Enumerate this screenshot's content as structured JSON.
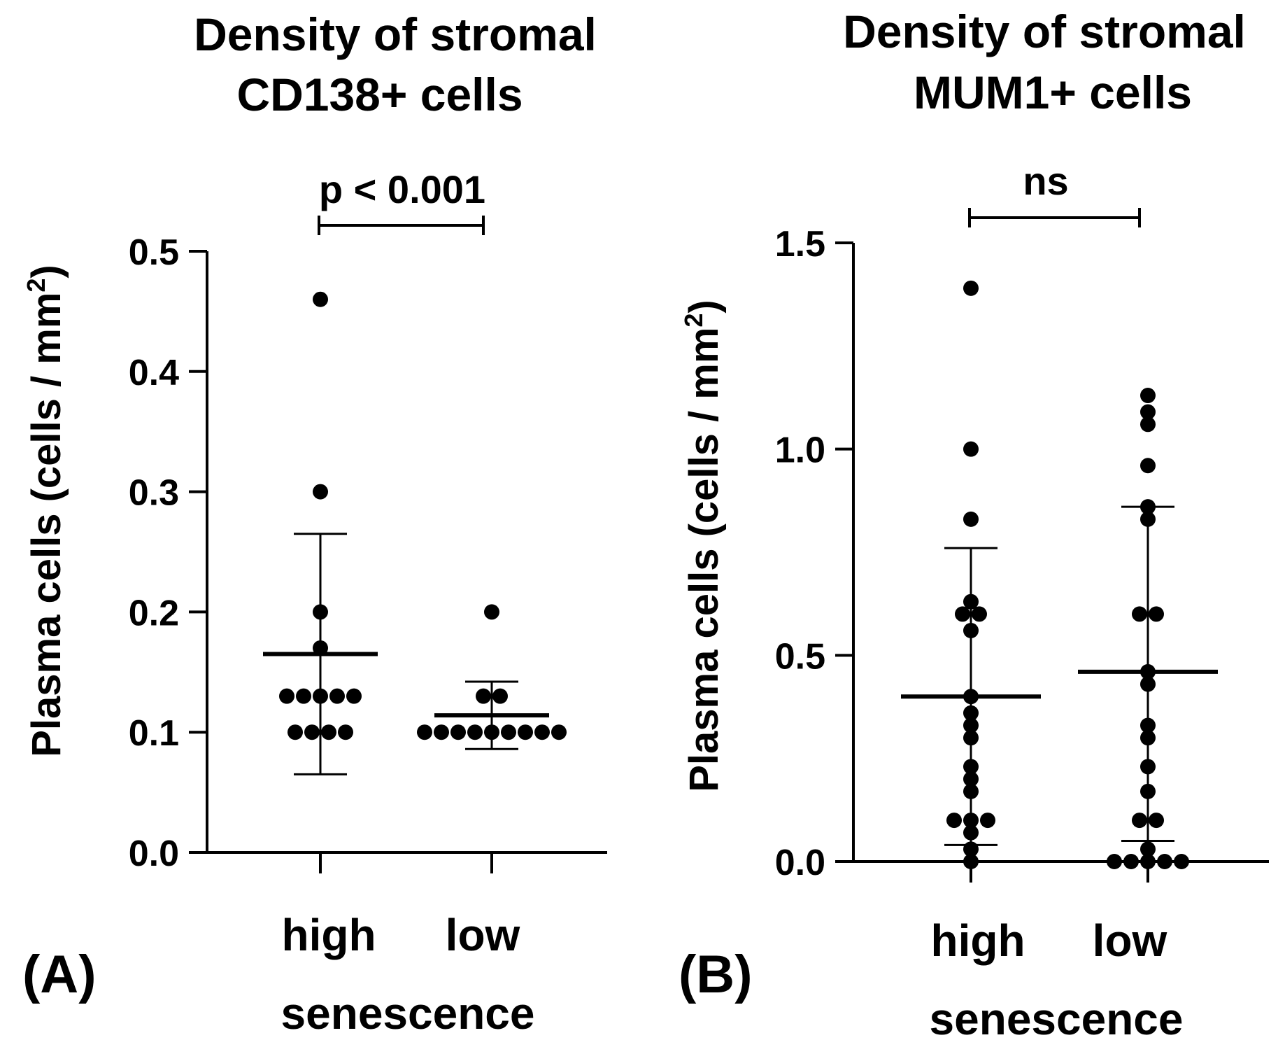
{
  "chart_data": [
    {
      "type": "scatter",
      "panel_label": "(A)",
      "title": [
        "Density of stromal",
        "CD138+ cells"
      ],
      "ylabel": "Plasma cells (cells / mm",
      "ylabel_sup": "2",
      "ylabel_close": ")",
      "xlabel": "senescence",
      "categories": [
        "high",
        "low"
      ],
      "ylim": [
        0,
        0.5
      ],
      "yticks": [
        0.0,
        0.1,
        0.2,
        0.3,
        0.4,
        0.5
      ],
      "ytick_labels": [
        "0.0",
        "0.1",
        "0.2",
        "0.3",
        "0.4",
        "0.5"
      ],
      "significance": "p < 0.001",
      "series": [
        {
          "name": "high",
          "points": [
            0.46,
            0.3,
            0.2,
            0.17,
            0.13,
            0.13,
            0.13,
            0.13,
            0.13,
            0.1,
            0.1,
            0.1,
            0.1
          ],
          "mean": 0.165,
          "sd_low": 0.065,
          "sd_high": 0.265
        },
        {
          "name": "low",
          "points": [
            0.2,
            0.13,
            0.13,
            0.1,
            0.1,
            0.1,
            0.1,
            0.1,
            0.1,
            0.1,
            0.1,
            0.1
          ],
          "mean": 0.114,
          "sd_low": 0.086,
          "sd_high": 0.142
        }
      ]
    },
    {
      "type": "scatter",
      "panel_label": "(B)",
      "title": [
        "Density of stromal",
        "MUM1+ cells"
      ],
      "ylabel": "Plasma cells (cells / mm",
      "ylabel_sup": "2",
      "ylabel_close": ")",
      "xlabel": "senescence",
      "categories": [
        "high",
        "low"
      ],
      "ylim": [
        0,
        1.5
      ],
      "yticks": [
        0.0,
        0.5,
        1.0,
        1.5
      ],
      "ytick_labels": [
        "0.0",
        "0.5",
        "1.0",
        "1.5"
      ],
      "significance": "ns",
      "series": [
        {
          "name": "high",
          "points": [
            1.39,
            1.0,
            0.83,
            0.63,
            0.6,
            0.6,
            0.56,
            0.4,
            0.36,
            0.33,
            0.3,
            0.23,
            0.2,
            0.17,
            0.1,
            0.1,
            0.1,
            0.07,
            0.03,
            0.0
          ],
          "mean": 0.4,
          "sd_low": 0.04,
          "sd_high": 0.76
        },
        {
          "name": "low",
          "points": [
            1.13,
            1.09,
            1.06,
            0.96,
            0.86,
            0.83,
            0.6,
            0.6,
            0.46,
            0.43,
            0.33,
            0.3,
            0.23,
            0.17,
            0.1,
            0.1,
            0.03,
            0.0,
            0.0,
            0.0,
            0.0,
            0.0
          ],
          "mean": 0.46,
          "sd_low": 0.05,
          "sd_high": 0.86
        }
      ]
    }
  ]
}
